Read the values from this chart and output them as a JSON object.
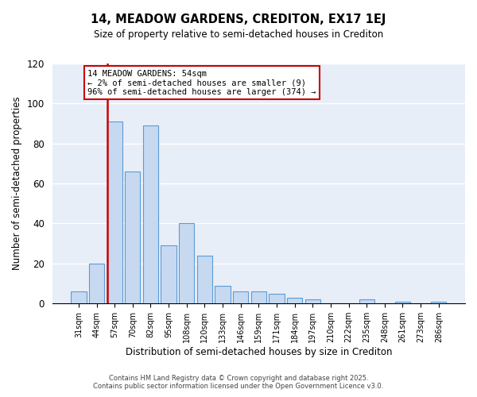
{
  "title": "14, MEADOW GARDENS, CREDITON, EX17 1EJ",
  "subtitle": "Size of property relative to semi-detached houses in Crediton",
  "xlabel": "Distribution of semi-detached houses by size in Crediton",
  "ylabel": "Number of semi-detached properties",
  "bar_labels": [
    "31sqm",
    "44sqm",
    "57sqm",
    "70sqm",
    "82sqm",
    "95sqm",
    "108sqm",
    "120sqm",
    "133sqm",
    "146sqm",
    "159sqm",
    "171sqm",
    "184sqm",
    "197sqm",
    "210sqm",
    "222sqm",
    "235sqm",
    "248sqm",
    "261sqm",
    "273sqm",
    "286sqm"
  ],
  "bar_values": [
    6,
    20,
    91,
    66,
    89,
    29,
    40,
    24,
    9,
    6,
    6,
    5,
    3,
    2,
    0,
    0,
    2,
    0,
    1,
    0,
    1
  ],
  "bar_color": "#c6d9f1",
  "bar_edge_color": "#5b9bd5",
  "ylim": [
    0,
    120
  ],
  "yticks": [
    0,
    20,
    40,
    60,
    80,
    100,
    120
  ],
  "vline_color": "#cc0000",
  "annotation_title": "14 MEADOW GARDENS: 54sqm",
  "annotation_line1": "← 2% of semi-detached houses are smaller (9)",
  "annotation_line2": "96% of semi-detached houses are larger (374) →",
  "annotation_box_color": "#ffffff",
  "annotation_box_edge": "#cc0000",
  "footer1": "Contains HM Land Registry data © Crown copyright and database right 2025.",
  "footer2": "Contains public sector information licensed under the Open Government Licence v3.0.",
  "background_color": "#ffffff",
  "grid_color": "#ffffff",
  "plot_bg_color": "#e8eef7"
}
